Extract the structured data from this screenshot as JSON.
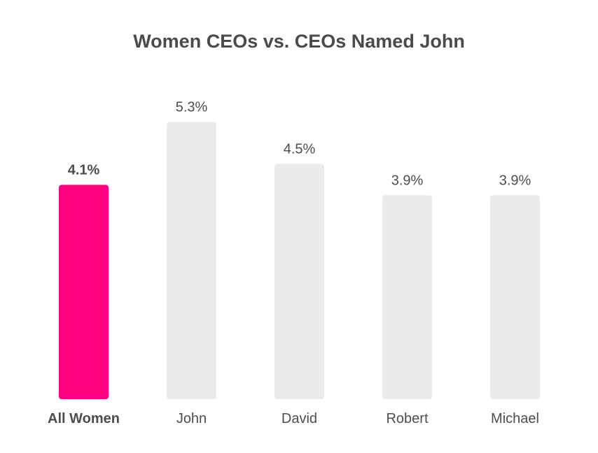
{
  "chart_data": {
    "type": "bar",
    "title": "Women CEOs vs. CEOs Named John",
    "categories": [
      "All Women",
      "John",
      "David",
      "Robert",
      "Michael"
    ],
    "values": [
      4.1,
      5.3,
      4.5,
      3.9,
      3.9
    ],
    "data_labels": [
      "4.1%",
      "5.3%",
      "4.5%",
      "3.9%",
      "3.9%"
    ],
    "highlight_index": 0,
    "colors": {
      "highlight": "#ff0080",
      "default": "#ebebeb",
      "text": "#4d4d4d"
    },
    "xlabel": "",
    "ylabel": "",
    "ylim": [
      0,
      5.3
    ],
    "grid": false,
    "legend": "none"
  }
}
